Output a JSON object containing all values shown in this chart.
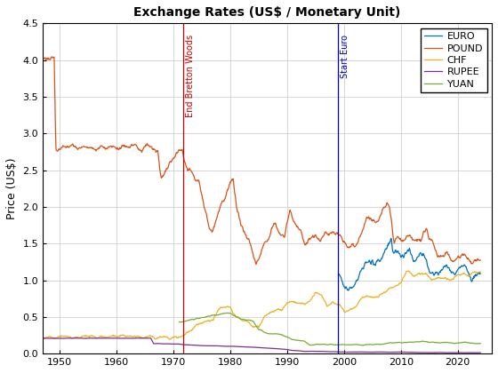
{
  "title": "Exchange Rates (US$ / Monetary Unit)",
  "ylabel": "Price (US$)",
  "xlim": [
    1947,
    2026
  ],
  "ylim": [
    0,
    4.5
  ],
  "yticks": [
    0,
    0.5,
    1.0,
    1.5,
    2.0,
    2.5,
    3.0,
    3.5,
    4.0,
    4.5
  ],
  "xticks": [
    1950,
    1960,
    1970,
    1980,
    1990,
    2000,
    2010,
    2020
  ],
  "vline1_x": 1971.75,
  "vline1_label": "End Bretton Woods",
  "vline1_color": "#cc0000",
  "vline2_x": 1999.0,
  "vline2_label": "Start Euro",
  "vline2_color": "#0000cc",
  "legend_labels": [
    "EURO",
    "POUND",
    "CHF",
    "RUPEE",
    "YUAN"
  ],
  "line_colors": [
    "#0072BD",
    "#D95319",
    "#EDB120",
    "#7E2F8E",
    "#77AC30"
  ],
  "background_color": "#ffffff",
  "grid_color": "#d0d0d0"
}
